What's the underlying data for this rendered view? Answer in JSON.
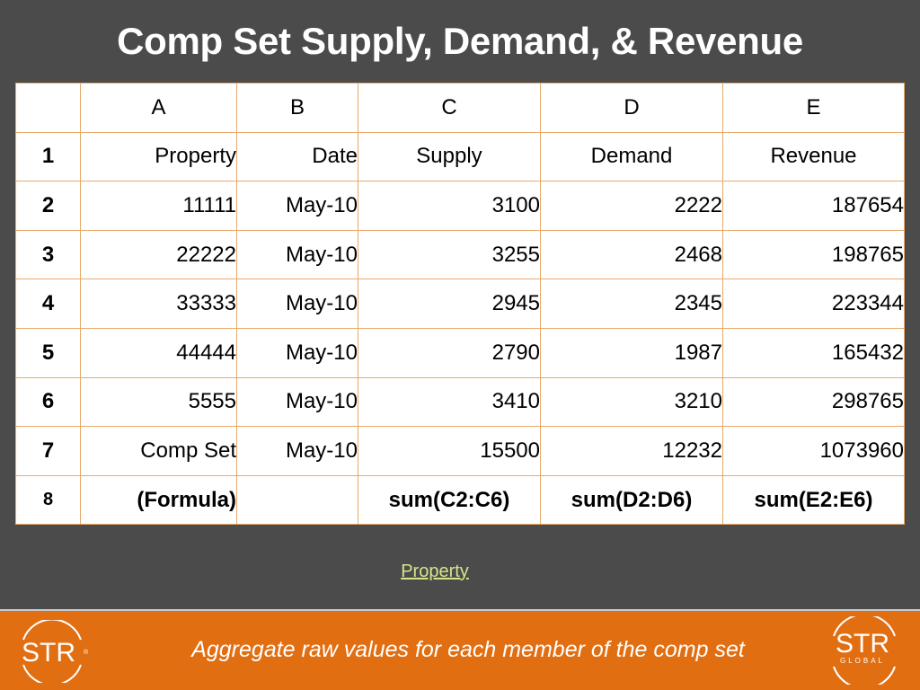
{
  "title": "Comp Set Supply, Demand, & Revenue",
  "table": {
    "column_headers": [
      "",
      "A",
      "B",
      "C",
      "D",
      "E"
    ],
    "rows": [
      [
        "1",
        "Property",
        "Date",
        "Supply",
        "Demand",
        "Revenue"
      ],
      [
        "2",
        "11111",
        "May-10",
        "3100",
        "2222",
        "187654"
      ],
      [
        "3",
        "22222",
        "May-10",
        "3255",
        "2468",
        "198765"
      ],
      [
        "4",
        "33333",
        "May-10",
        "2945",
        "2345",
        "223344"
      ],
      [
        "5",
        "44444",
        "May-10",
        "2790",
        "1987",
        "165432"
      ],
      [
        "6",
        "5555",
        "May-10",
        "3410",
        "3210",
        "298765"
      ],
      [
        "7",
        "Comp Set",
        "May-10",
        "15500",
        "12232",
        "1073960"
      ],
      [
        "8",
        "(Formula)",
        "",
        "sum(C2:C6)",
        "sum(D2:D6)",
        "sum(E2:E6)"
      ]
    ]
  },
  "link_text": "Property",
  "footer": {
    "caption": "Aggregate raw values for each member of the comp set",
    "logo_left_text": "STR",
    "logo_right_text": "STR",
    "logo_right_sub": "GLOBAL"
  },
  "colors": {
    "background": "#4b4b4b",
    "footer_orange": "#e26e12",
    "grid_line": "#e8a86a",
    "link": "#d7e58a"
  }
}
